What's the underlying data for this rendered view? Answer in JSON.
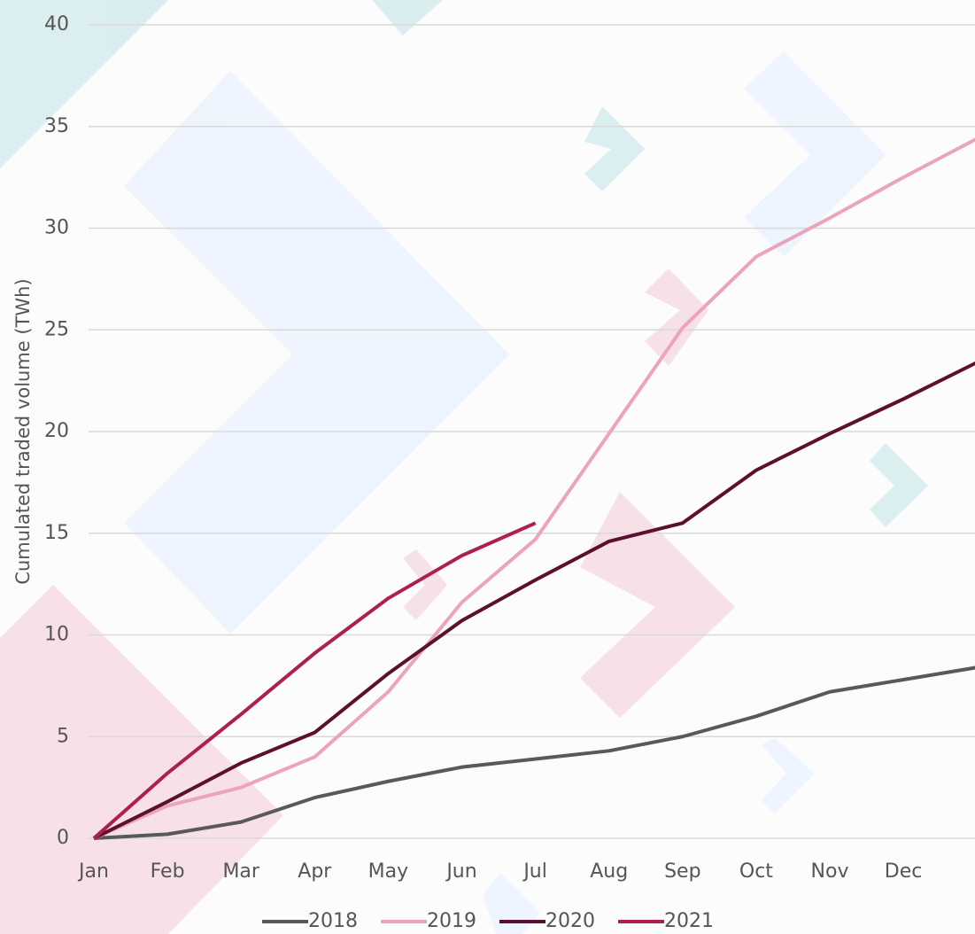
{
  "chart_data": {
    "type": "line",
    "y_label": "Cumulated traded volume (TWh)",
    "categories": [
      "Jan",
      "Feb",
      "Mar",
      "Apr",
      "May",
      "Jun",
      "Jul",
      "Aug",
      "Sep",
      "Oct",
      "Nov",
      "Dec",
      null
    ],
    "series": [
      {
        "name": "2018",
        "color": "#595959",
        "values": [
          0,
          0.2,
          0.8,
          2.0,
          2.8,
          3.5,
          3.9,
          4.3,
          5.0,
          6.0,
          7.2,
          7.8,
          8.4
        ]
      },
      {
        "name": "2019",
        "color": "#eba4bc",
        "values": [
          0,
          1.6,
          2.5,
          4.0,
          7.2,
          11.6,
          14.7,
          19.9,
          25.1,
          28.6,
          30.5,
          32.5,
          34.4
        ]
      },
      {
        "name": "2020",
        "color": "#5c0f2e",
        "values": [
          0,
          1.8,
          3.7,
          5.2,
          8.1,
          10.7,
          12.7,
          14.6,
          15.5,
          18.1,
          19.9,
          21.6,
          23.4
        ]
      },
      {
        "name": "2021",
        "color": "#ad1f52",
        "values": [
          0,
          3.2,
          6.1,
          9.1,
          11.8,
          13.9,
          15.5,
          null,
          null,
          null,
          null,
          null,
          null
        ]
      }
    ],
    "ylim": [
      0,
      40
    ],
    "yticks": [
      0,
      5,
      10,
      15,
      20,
      25,
      30,
      35,
      40
    ],
    "grid": true,
    "legend": "bottom"
  }
}
